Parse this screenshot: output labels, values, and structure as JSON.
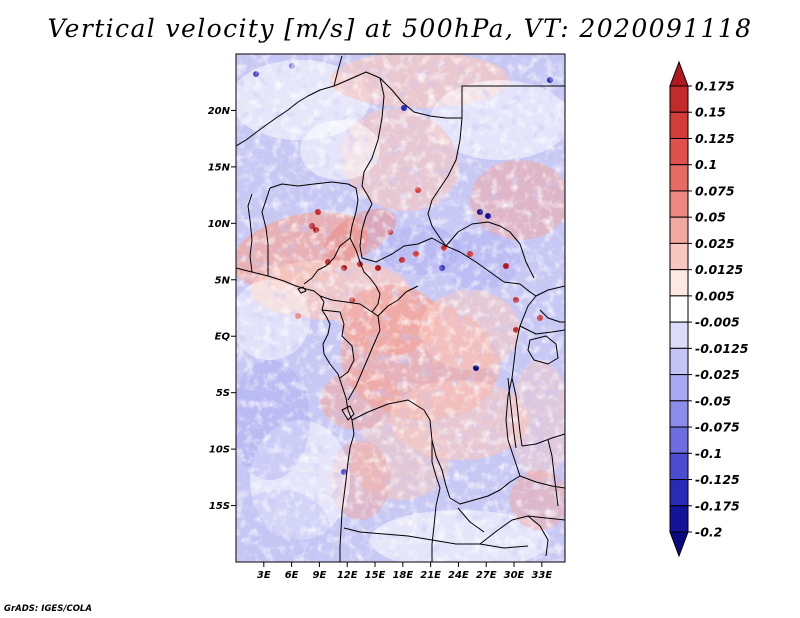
{
  "title": "Vertical velocity [m/s] at 500hPa, VT: 2020091118",
  "credit": "GrADS: IGES/COLA",
  "map": {
    "variable": "Vertical velocity",
    "units": "m/s",
    "level": "500hPa",
    "valid_time": "2020091118",
    "lon_range": [
      0,
      35.5
    ],
    "lat_range": [
      -20,
      25
    ],
    "x_ticks": [
      {
        "lon": 3,
        "label": "3E"
      },
      {
        "lon": 6,
        "label": "6E"
      },
      {
        "lon": 9,
        "label": "9E"
      },
      {
        "lon": 12,
        "label": "12E"
      },
      {
        "lon": 15,
        "label": "15E"
      },
      {
        "lon": 18,
        "label": "18E"
      },
      {
        "lon": 21,
        "label": "21E"
      },
      {
        "lon": 24,
        "label": "24E"
      },
      {
        "lon": 27,
        "label": "27E"
      },
      {
        "lon": 30,
        "label": "30E"
      },
      {
        "lon": 33,
        "label": "33E"
      }
    ],
    "y_ticks": [
      {
        "lat": 20,
        "label": "20N"
      },
      {
        "lat": 15,
        "label": "15N"
      },
      {
        "lat": 10,
        "label": "10N"
      },
      {
        "lat": 5,
        "label": "5N"
      },
      {
        "lat": 0,
        "label": "EQ"
      },
      {
        "lat": -5,
        "label": "5S"
      },
      {
        "lat": -10,
        "label": "10S"
      },
      {
        "lat": -15,
        "label": "15S"
      }
    ]
  },
  "colorbar": {
    "labels": [
      "0.175",
      "0.15",
      "0.125",
      "0.1",
      "0.075",
      "0.05",
      "0.025",
      "0.0125",
      "0.005",
      "-0.005",
      "-0.0125",
      "-0.025",
      "-0.05",
      "-0.075",
      "-0.1",
      "-0.125",
      "-0.175",
      "-0.2"
    ],
    "colors": [
      "#b01820",
      "#c42a2c",
      "#d43c3a",
      "#e0504c",
      "#e66b64",
      "#ec8880",
      "#f2a8a0",
      "#f8c8c0",
      "#fde8e4",
      "#ffffff",
      "#dcdcfa",
      "#c4c4f6",
      "#a8a8f2",
      "#8c8cea",
      "#6e6ee0",
      "#4c4cd0",
      "#2a2ab8",
      "#14149a",
      "#0a0a80"
    ]
  }
}
